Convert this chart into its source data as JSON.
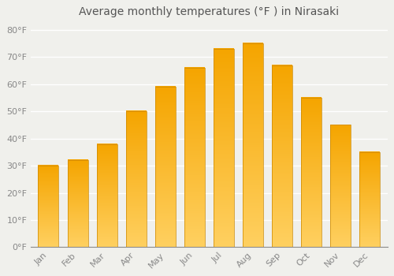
{
  "title": "Average monthly temperatures (°F ) in Nirasaki",
  "months": [
    "Jan",
    "Feb",
    "Mar",
    "Apr",
    "May",
    "Jun",
    "Jul",
    "Aug",
    "Sep",
    "Oct",
    "Nov",
    "Dec"
  ],
  "values": [
    30,
    32,
    38,
    50,
    59,
    66,
    73,
    75,
    67,
    55,
    45,
    35
  ],
  "bar_color_bottom": "#FFD060",
  "bar_color_top": "#F5A500",
  "bar_edge_color": "#CC8800",
  "background_color": "#F0F0EC",
  "grid_color": "#FFFFFF",
  "yticks": [
    0,
    10,
    20,
    30,
    40,
    50,
    60,
    70,
    80
  ],
  "ylim": [
    0,
    83
  ],
  "title_fontsize": 10,
  "tick_fontsize": 8,
  "bar_width": 0.7,
  "gradient_steps": 100
}
